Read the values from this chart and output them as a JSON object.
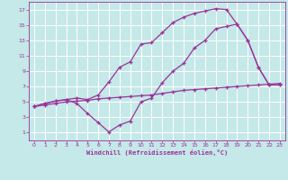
{
  "xlabel": "Windchill (Refroidissement éolien,°C)",
  "xlim": [
    -0.5,
    23.5
  ],
  "ylim": [
    0,
    18
  ],
  "xticks": [
    0,
    1,
    2,
    3,
    4,
    5,
    6,
    7,
    8,
    9,
    10,
    11,
    12,
    13,
    14,
    15,
    16,
    17,
    18,
    19,
    20,
    21,
    22,
    23
  ],
  "yticks": [
    1,
    3,
    5,
    7,
    9,
    11,
    13,
    15,
    17
  ],
  "background_color": "#c5e8e8",
  "grid_color": "#b0d8d8",
  "line_color": "#993399",
  "line1_x": [
    0,
    1,
    2,
    3,
    4,
    5,
    6,
    7,
    8,
    9,
    10,
    11,
    12,
    13,
    14,
    15,
    16,
    17,
    18,
    19,
    20,
    21,
    22,
    23
  ],
  "line1_y": [
    4.4,
    4.8,
    5.1,
    5.3,
    5.5,
    5.3,
    5.9,
    7.6,
    9.5,
    10.2,
    12.5,
    12.7,
    14.0,
    15.3,
    16.0,
    16.5,
    16.8,
    17.1,
    17.0,
    15.1,
    13.0,
    9.5,
    7.2,
    7.2
  ],
  "line2_x": [
    0,
    1,
    2,
    3,
    4,
    5,
    6,
    7,
    8,
    9,
    10,
    11,
    12,
    13,
    14,
    15,
    16,
    17,
    18,
    19,
    20,
    21,
    22,
    23
  ],
  "line2_y": [
    4.4,
    4.8,
    5.1,
    5.3,
    4.8,
    3.5,
    2.3,
    1.1,
    2.0,
    2.5,
    5.0,
    5.5,
    7.5,
    9.0,
    10.0,
    12.0,
    13.0,
    14.5,
    14.8,
    15.1,
    13.0,
    9.5,
    7.2,
    7.2
  ],
  "line3_x": [
    0,
    1,
    2,
    3,
    4,
    5,
    6,
    7,
    8,
    9,
    10,
    11,
    12,
    13,
    14,
    15,
    16,
    17,
    18,
    19,
    20,
    21,
    22,
    23
  ],
  "line3_y": [
    4.4,
    4.6,
    4.8,
    5.0,
    5.1,
    5.2,
    5.4,
    5.5,
    5.6,
    5.7,
    5.8,
    5.9,
    6.1,
    6.3,
    6.5,
    6.6,
    6.7,
    6.8,
    6.9,
    7.0,
    7.1,
    7.2,
    7.3,
    7.4
  ]
}
